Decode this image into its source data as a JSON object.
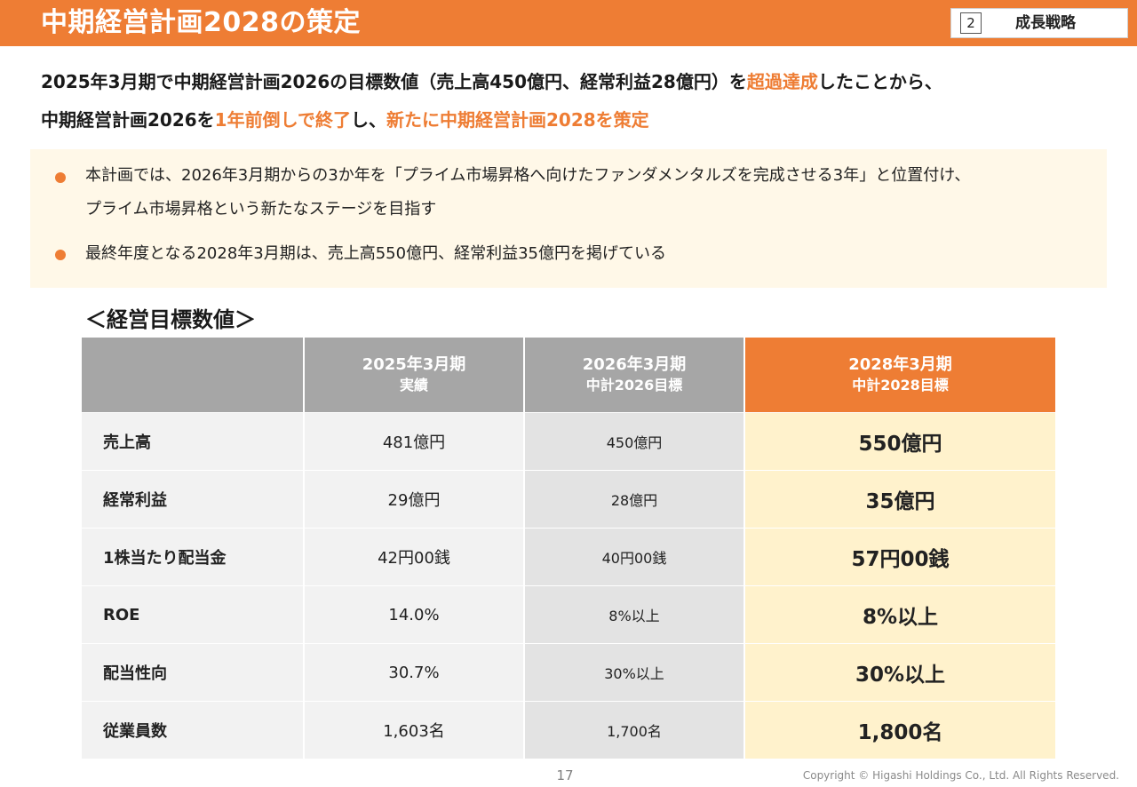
{
  "header": {
    "title": "中期経営計画2028の策定",
    "section_number": "2",
    "section_label": "成長戦略"
  },
  "lead": {
    "line1": {
      "part1": "2025年3月期で中期経営計画2026の目標数値（売上高450億円、経常利益28億円）を",
      "highlight1": "超過達成",
      "part2": "したことから、"
    },
    "line2": {
      "part1": "中期経営計画2026を",
      "highlight1": "1年前倒しで終了",
      "part2": "し、",
      "highlight2": "新たに中期経営計画2028を策定"
    }
  },
  "notes": [
    {
      "line1": "本計画では、2026年3月期からの3か年を「プライム市場昇格へ向けたファンダメンタルズを完成させる3年」と位置付け、",
      "line2": "プライム市場昇格という新たなステージを目指す"
    },
    {
      "line1": "最終年度となる2028年3月期は、売上高550億円、経常利益35億円を掲げている"
    }
  ],
  "table": {
    "caption": "＜経営目標数値＞",
    "columns": [
      {
        "top": "",
        "sub": ""
      },
      {
        "top": "2025年3月期",
        "sub": "実績"
      },
      {
        "top": "2026年3月期",
        "sub": "中計2026目標"
      },
      {
        "top": "2028年3月期",
        "sub": "中計2028目標"
      }
    ],
    "rows": [
      {
        "label": "売上高",
        "actual_2025": "481億円",
        "target_2026": "450億円",
        "target_2028": "550億円"
      },
      {
        "label": "経常利益",
        "actual_2025": "29億円",
        "target_2026": "28億円",
        "target_2028": "35億円"
      },
      {
        "label": "1株当たり配当金",
        "actual_2025": "42円00銭",
        "target_2026": "40円00銭",
        "target_2028": "57円00銭"
      },
      {
        "label": "ROE",
        "actual_2025": "14.0%",
        "target_2026": "8%以上",
        "target_2028": "8%以上"
      },
      {
        "label": "配当性向",
        "actual_2025": "30.7%",
        "target_2026": "30%以上",
        "target_2028": "30%以上"
      },
      {
        "label": "従業員数",
        "actual_2025": "1,603名",
        "target_2026": "1,700名",
        "target_2028": "1,800名"
      }
    ]
  },
  "footer": {
    "page_number": "17",
    "copyright": "Copyright © Higashi Holdings Co., Ltd. All Rights Reserved."
  },
  "colors": {
    "accent": "#ee7d34",
    "panel": "#fff8e8",
    "header_gray": "#a6a6a6",
    "target_highlight": "#fff2cc"
  }
}
